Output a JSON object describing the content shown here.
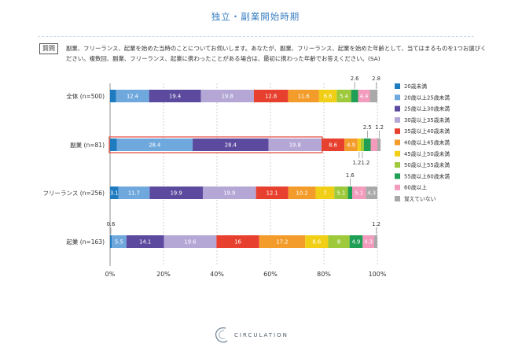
{
  "title": "独立・副業開始時期",
  "question_label": "質問",
  "question_text": "副業、フリーランス、起業を始めた当時のことについてお伺いします。あなたが、副業、フリーランス、起業を始めた年齢として、当てはまるものを1つお選びください。複数回、副業、フリーランス、起業に携わったことがある場合は、最初に携わった年齢でお答えください。(SA)",
  "brand": "CIRCULATION",
  "chart_data": {
    "type": "bar",
    "orientation": "horizontal",
    "stacked": true,
    "categories": [
      "全体 (n=500)",
      "副業 (n=81)",
      "フリーランス (n=256)",
      "起業 (n=163)"
    ],
    "series": [
      {
        "name": "20歳未満",
        "color": "#1f7bc0",
        "values": [
          2.2,
          2.5,
          3.1,
          0.6
        ]
      },
      {
        "name": "20歳以上25歳未満",
        "color": "#6fa8dc",
        "values": [
          12.4,
          28.4,
          11.7,
          5.5
        ]
      },
      {
        "name": "25歳以上30歳未満",
        "color": "#5b4a9e",
        "values": [
          19.4,
          28.4,
          19.9,
          14.1
        ]
      },
      {
        "name": "30歳以上35歳未満",
        "color": "#b4a7d6",
        "values": [
          19.8,
          19.8,
          19.9,
          19.6
        ]
      },
      {
        "name": "35歳以上40歳未満",
        "color": "#e8402f",
        "values": [
          12.8,
          8.6,
          12.1,
          16.0
        ]
      },
      {
        "name": "40歳以上45歳未満",
        "color": "#f39c2b",
        "values": [
          11.6,
          4.9,
          10.2,
          17.2
        ]
      },
      {
        "name": "45歳以上50歳未満",
        "color": "#f1cf16",
        "values": [
          6.6,
          1.2,
          7.0,
          8.6
        ]
      },
      {
        "name": "50歳以上55歳未満",
        "color": "#9dc93b",
        "values": [
          5.4,
          1.2,
          5.1,
          8.0
        ]
      },
      {
        "name": "55歳以上60歳未満",
        "color": "#1f9e55",
        "values": [
          2.6,
          2.5,
          1.6,
          4.9
        ]
      },
      {
        "name": "60歳以上",
        "color": "#f29bbd",
        "values": [
          4.4,
          2.5,
          5.1,
          4.3
        ]
      },
      {
        "name": "覚えていない",
        "color": "#a9a9a9",
        "values": [
          2.8,
          1.2,
          4.3,
          1.2
        ]
      }
    ],
    "x_ticks": [
      "0%",
      "20%",
      "40%",
      "60%",
      "80%",
      "100%"
    ],
    "xlim": [
      0,
      100
    ],
    "grid": true,
    "legend_position": "right",
    "highlighted_category": "副業 (n=81)",
    "highlighted_segments": [
      "20歳未満",
      "20歳以上25歳未満",
      "25歳以上30歳未満",
      "30歳以上35歳未満"
    ]
  }
}
